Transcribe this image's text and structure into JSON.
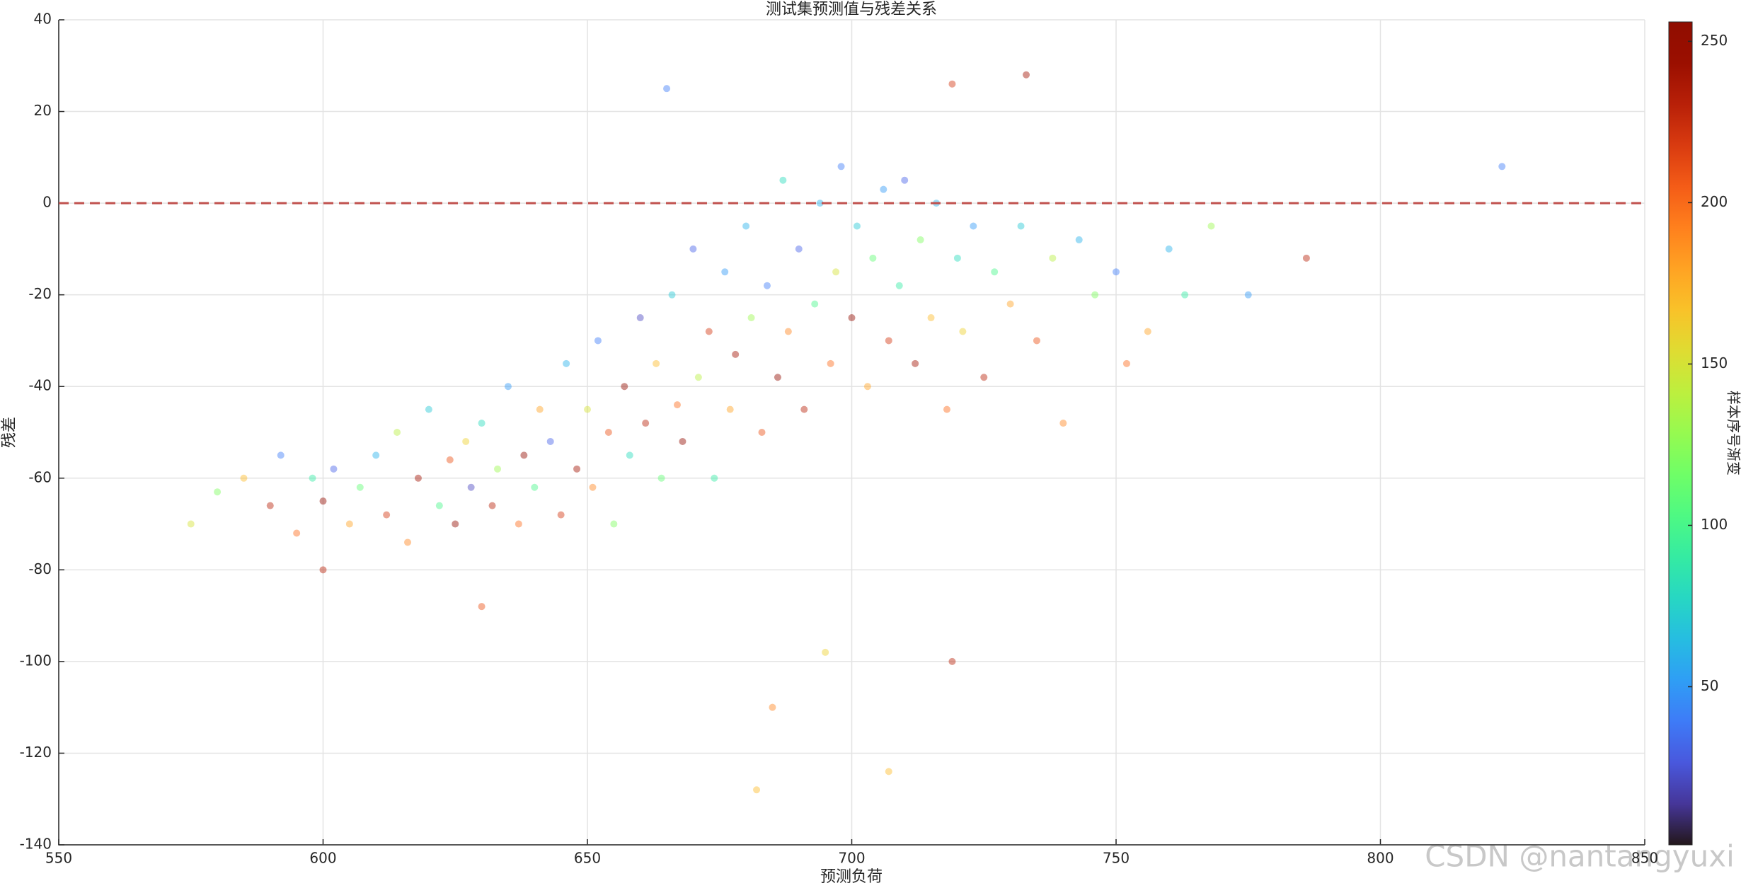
{
  "chart_data": {
    "type": "scatter",
    "title": "测试集预测值与残差关系",
    "x_label": "预测负荷",
    "y_label": "残差",
    "colorbar_label": "样本序号渐变",
    "watermark": "CSDN @nantangyuxi",
    "colormap": "turbo",
    "grid": true,
    "xlim": [
      550,
      850
    ],
    "xticks": [
      550,
      600,
      650,
      700,
      750,
      800,
      850
    ],
    "ylim": [
      -140,
      40
    ],
    "yticks": [
      -140,
      -120,
      -100,
      -80,
      -60,
      -40,
      -20,
      0,
      20,
      40
    ],
    "clim": [
      1,
      256
    ],
    "cticks": [
      50,
      100,
      150,
      200,
      250
    ],
    "reference_line": {
      "y": 0,
      "color": "#c0504d"
    },
    "x": [
      575,
      580,
      585,
      590,
      592,
      595,
      598,
      600,
      602,
      605,
      607,
      610,
      612,
      614,
      616,
      618,
      620,
      622,
      624,
      625,
      627,
      628,
      630,
      632,
      633,
      635,
      637,
      638,
      640,
      641,
      643,
      645,
      646,
      648,
      650,
      651,
      652,
      654,
      655,
      657,
      658,
      660,
      661,
      663,
      664,
      666,
      667,
      668,
      670,
      671,
      673,
      674,
      676,
      677,
      678,
      680,
      681,
      683,
      684,
      686,
      687,
      688,
      690,
      691,
      693,
      694,
      696,
      697,
      698,
      700,
      701,
      703,
      704,
      706,
      707,
      709,
      710,
      712,
      713,
      715,
      716,
      718,
      720,
      721,
      723,
      725,
      727,
      730,
      732,
      735,
      738,
      740,
      743,
      746,
      750,
      752,
      756,
      760,
      763,
      768,
      775,
      786,
      823,
      685,
      682,
      707,
      719,
      733,
      719,
      665,
      695,
      600,
      630
    ],
    "values": [
      -70,
      -63,
      -60,
      -66,
      -55,
      -72,
      -60,
      -65,
      -58,
      -70,
      -62,
      -55,
      -68,
      -50,
      -74,
      -60,
      -45,
      -66,
      -56,
      -70,
      -52,
      -62,
      -48,
      -66,
      -58,
      -40,
      -70,
      -55,
      -62,
      -45,
      -52,
      -68,
      -35,
      -58,
      -45,
      -62,
      -30,
      -50,
      -70,
      -40,
      -55,
      -25,
      -48,
      -35,
      -60,
      -20,
      -44,
      -52,
      -10,
      -38,
      -28,
      -60,
      -15,
      -45,
      -33,
      -5,
      -25,
      -50,
      -18,
      -38,
      5,
      -28,
      -10,
      -45,
      -22,
      0,
      -35,
      -15,
      8,
      -25,
      -5,
      -40,
      -12,
      3,
      -30,
      -18,
      5,
      -35,
      -8,
      -25,
      0,
      -45,
      -12,
      -28,
      -5,
      -38,
      -15,
      -22,
      -5,
      -30,
      -12,
      -48,
      -8,
      -20,
      -15,
      -35,
      -28,
      -10,
      -20,
      -5,
      -20,
      -12,
      8,
      -110,
      -128,
      -124,
      -100,
      28,
      26,
      25,
      -98,
      -80,
      -88
    ],
    "c": [
      150,
      120,
      170,
      230,
      40,
      200,
      90,
      250,
      30,
      180,
      110,
      60,
      220,
      140,
      190,
      240,
      70,
      100,
      210,
      250,
      160,
      20,
      80,
      230,
      130,
      50,
      200,
      250,
      100,
      180,
      30,
      220,
      60,
      240,
      150,
      190,
      40,
      210,
      120,
      250,
      80,
      20,
      230,
      170,
      110,
      70,
      200,
      250,
      30,
      140,
      220,
      90,
      50,
      180,
      240,
      60,
      130,
      210,
      40,
      250,
      80,
      190,
      30,
      230,
      100,
      60,
      200,
      150,
      40,
      250,
      70,
      180,
      110,
      50,
      220,
      90,
      30,
      240,
      120,
      170,
      60,
      200,
      80,
      160,
      50,
      230,
      100,
      180,
      70,
      210,
      140,
      190,
      60,
      120,
      40,
      200,
      180,
      60,
      90,
      130,
      50,
      230,
      40,
      190,
      170,
      170,
      230,
      240,
      220,
      40,
      160,
      230,
      210
    ]
  }
}
